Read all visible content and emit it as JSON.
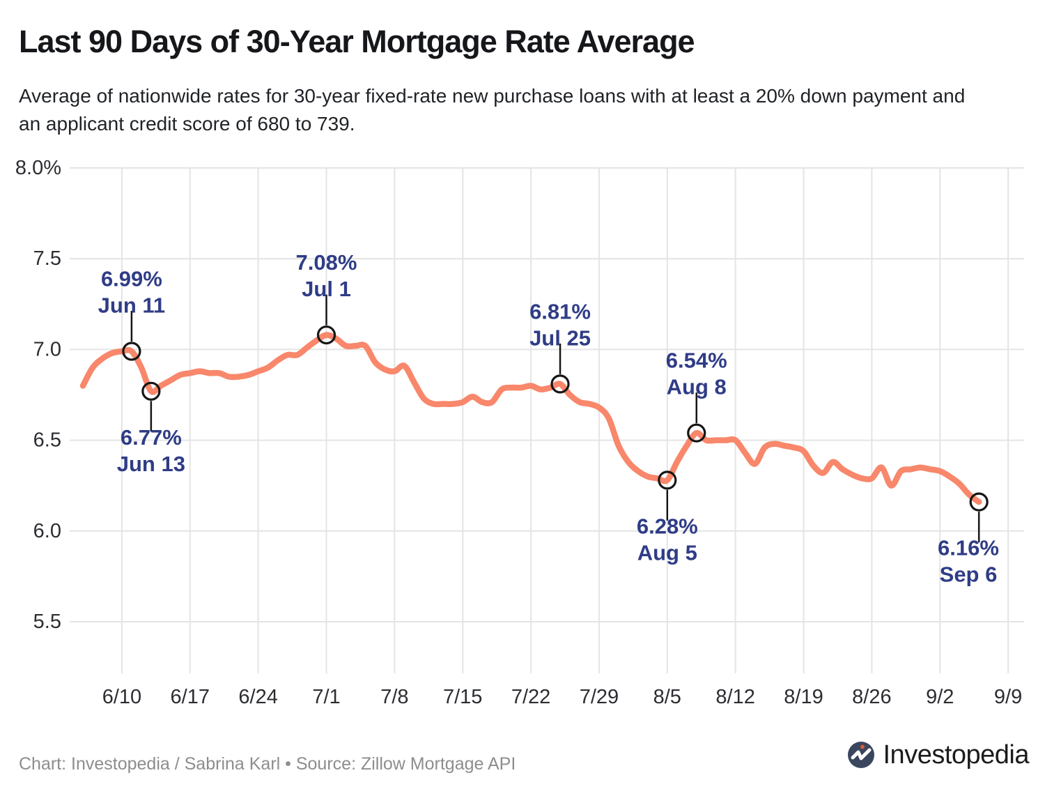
{
  "header": {
    "title": "Last 90 Days of 30-Year Mortgage Rate Average",
    "subtitle": "Average of nationwide rates for 30-year fixed-rate new purchase loans with at least a 20% down payment and an applicant credit score of 680 to 739."
  },
  "footer": {
    "credit": "Chart: Investopedia / Sabrina Karl • Source: Zillow Mortgage API",
    "logo_text": "Investopedia"
  },
  "colors": {
    "line": "#F8876B",
    "grid": "#E4E4E4",
    "annotation_text": "#2F3C86",
    "marker": "#161616",
    "axis_text": "#2B2D31",
    "title_text": "#15171A",
    "footer_text": "#8D8D8D",
    "logo_circle": "#3A455E",
    "logo_dot": "#D95B35"
  },
  "chart_data": {
    "type": "line",
    "title": "Last 90 Days of 30-Year Mortgage Rate Average",
    "xlabel": "",
    "ylabel": "",
    "ylim": [
      5.5,
      8.0
    ],
    "grid": true,
    "legend": "none",
    "y_ticks": [
      {
        "label": "8.0%",
        "value": 8.0
      },
      {
        "label": "7.5",
        "value": 7.5
      },
      {
        "label": "7.0",
        "value": 7.0
      },
      {
        "label": "6.5",
        "value": 6.5
      },
      {
        "label": "6.0",
        "value": 6.0
      },
      {
        "label": "5.5",
        "value": 5.5
      }
    ],
    "x_ticks": [
      "6/10",
      "6/17",
      "6/24",
      "7/1",
      "7/8",
      "7/15",
      "7/22",
      "7/29",
      "8/5",
      "8/12",
      "8/19",
      "8/26",
      "9/2",
      "9/9"
    ],
    "dates": [
      "6/6",
      "6/7",
      "6/8",
      "6/9",
      "6/10",
      "6/11",
      "6/12",
      "6/13",
      "6/14",
      "6/15",
      "6/16",
      "6/17",
      "6/18",
      "6/19",
      "6/20",
      "6/21",
      "6/22",
      "6/23",
      "6/24",
      "6/25",
      "6/26",
      "6/27",
      "6/28",
      "6/29",
      "6/30",
      "7/1",
      "7/2",
      "7/3",
      "7/4",
      "7/5",
      "7/6",
      "7/7",
      "7/8",
      "7/9",
      "7/10",
      "7/11",
      "7/12",
      "7/13",
      "7/14",
      "7/15",
      "7/16",
      "7/17",
      "7/18",
      "7/19",
      "7/20",
      "7/21",
      "7/22",
      "7/23",
      "7/24",
      "7/25",
      "7/26",
      "7/27",
      "7/28",
      "7/29",
      "7/30",
      "7/31",
      "8/1",
      "8/2",
      "8/3",
      "8/4",
      "8/5",
      "8/6",
      "8/7",
      "8/8",
      "8/9",
      "8/10",
      "8/11",
      "8/12",
      "8/13",
      "8/14",
      "8/15",
      "8/16",
      "8/17",
      "8/18",
      "8/19",
      "8/20",
      "8/21",
      "8/22",
      "8/23",
      "8/24",
      "8/25",
      "8/26",
      "8/27",
      "8/28",
      "8/29",
      "8/30",
      "8/31",
      "9/1",
      "9/2",
      "9/3",
      "9/4",
      "9/5",
      "9/6"
    ],
    "rates": [
      6.8,
      6.9,
      6.95,
      6.98,
      6.99,
      6.99,
      6.9,
      6.77,
      6.8,
      6.83,
      6.86,
      6.87,
      6.88,
      6.87,
      6.87,
      6.85,
      6.85,
      6.86,
      6.88,
      6.9,
      6.94,
      6.97,
      6.97,
      7.01,
      7.05,
      7.08,
      7.06,
      7.02,
      7.02,
      7.02,
      6.93,
      6.89,
      6.88,
      6.91,
      6.82,
      6.73,
      6.7,
      6.7,
      6.7,
      6.71,
      6.74,
      6.71,
      6.71,
      6.78,
      6.79,
      6.79,
      6.8,
      6.78,
      6.79,
      6.81,
      6.75,
      6.71,
      6.7,
      6.68,
      6.62,
      6.47,
      6.38,
      6.33,
      6.3,
      6.29,
      6.28,
      6.38,
      6.47,
      6.54,
      6.5,
      6.5,
      6.5,
      6.5,
      6.43,
      6.37,
      6.46,
      6.48,
      6.47,
      6.46,
      6.44,
      6.36,
      6.32,
      6.38,
      6.34,
      6.31,
      6.29,
      6.29,
      6.35,
      6.25,
      6.33,
      6.34,
      6.35,
      6.34,
      6.33,
      6.3,
      6.26,
      6.2,
      6.16
    ],
    "annotations": [
      {
        "value_label": "6.99%",
        "date_label": "Jun 11",
        "date": "6/11",
        "value": 6.99,
        "side": "above"
      },
      {
        "value_label": "6.77%",
        "date_label": "Jun 13",
        "date": "6/13",
        "value": 6.77,
        "side": "below"
      },
      {
        "value_label": "7.08%",
        "date_label": "Jul 1",
        "date": "7/1",
        "value": 7.08,
        "side": "above"
      },
      {
        "value_label": "6.81%",
        "date_label": "Jul 25",
        "date": "7/25",
        "value": 6.81,
        "side": "above"
      },
      {
        "value_label": "6.28%",
        "date_label": "Aug 5",
        "date": "8/5",
        "value": 6.28,
        "side": "below"
      },
      {
        "value_label": "6.54%",
        "date_label": "Aug 8",
        "date": "8/8",
        "value": 6.54,
        "side": "above"
      },
      {
        "value_label": "6.16%",
        "date_label": "Sep 6",
        "date": "9/6",
        "value": 6.16,
        "side": "below"
      }
    ]
  }
}
